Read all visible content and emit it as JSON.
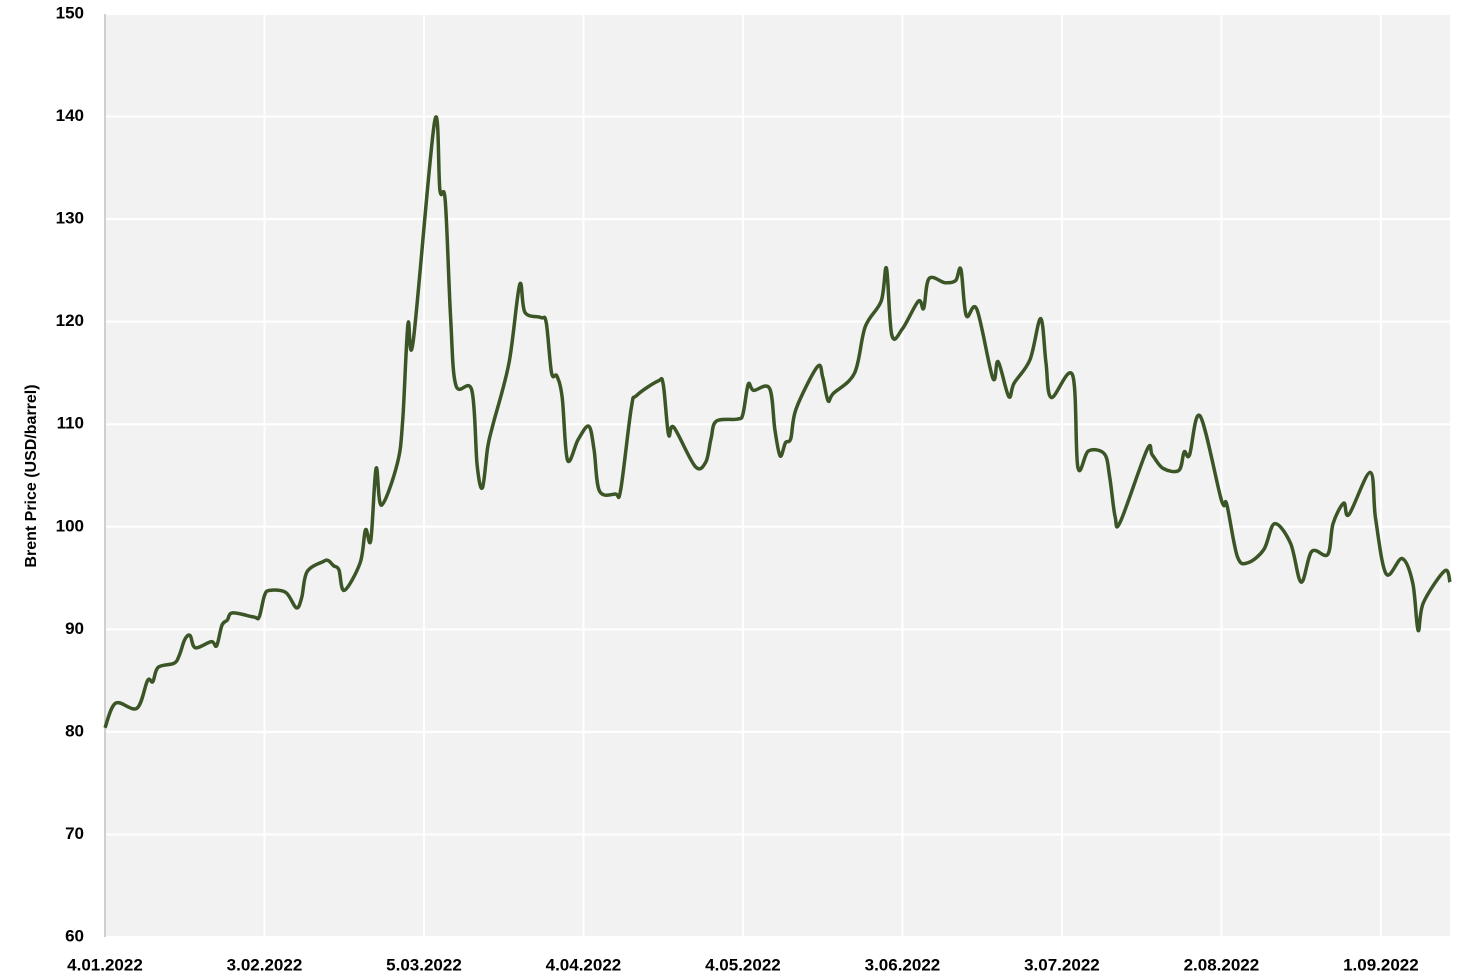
{
  "chart_data": {
    "type": "line",
    "y_label": "Brent Price (USD/barrel)",
    "x": [
      "2022-01-04",
      "2022-01-06",
      "2022-01-10",
      "2022-01-12",
      "2022-01-13",
      "2022-01-14",
      "2022-01-17",
      "2022-01-18",
      "2022-01-19",
      "2022-01-20",
      "2022-01-21",
      "2022-01-24",
      "2022-01-25",
      "2022-01-26",
      "2022-01-27",
      "2022-01-28",
      "2022-02-01",
      "2022-02-02",
      "2022-02-03",
      "2022-02-04",
      "2022-02-07",
      "2022-02-09",
      "2022-02-10",
      "2022-02-11",
      "2022-02-14",
      "2022-02-15",
      "2022-02-16",
      "2022-02-17",
      "2022-02-18",
      "2022-02-21",
      "2022-02-22",
      "2022-02-23",
      "2022-02-24",
      "2022-02-25",
      "2022-02-28",
      "2022-03-01",
      "2022-03-02",
      "2022-03-03",
      "2022-03-07",
      "2022-03-08",
      "2022-03-09",
      "2022-03-10",
      "2022-03-11",
      "2022-03-14",
      "2022-03-15",
      "2022-03-16",
      "2022-03-17",
      "2022-03-18",
      "2022-03-21",
      "2022-03-23",
      "2022-03-24",
      "2022-03-27",
      "2022-03-28",
      "2022-03-29",
      "2022-03-30",
      "2022-03-31",
      "2022-04-01",
      "2022-04-03",
      "2022-04-05",
      "2022-04-06",
      "2022-04-07",
      "2022-04-10",
      "2022-04-11",
      "2022-04-13",
      "2022-04-14",
      "2022-04-18",
      "2022-04-19",
      "2022-04-20",
      "2022-04-21",
      "2022-04-25",
      "2022-04-27",
      "2022-04-28",
      "2022-04-29",
      "2022-05-03",
      "2022-05-04",
      "2022-05-05",
      "2022-05-06",
      "2022-05-09",
      "2022-05-10",
      "2022-05-11",
      "2022-05-12",
      "2022-05-13",
      "2022-05-14",
      "2022-05-18",
      "2022-05-19",
      "2022-05-20",
      "2022-05-21",
      "2022-05-25",
      "2022-05-27",
      "2022-05-30",
      "2022-05-31",
      "2022-06-01",
      "2022-06-03",
      "2022-06-06",
      "2022-06-07",
      "2022-06-08",
      "2022-06-11",
      "2022-06-13",
      "2022-06-14",
      "2022-06-15",
      "2022-06-17",
      "2022-06-20",
      "2022-06-21",
      "2022-06-23",
      "2022-06-24",
      "2022-06-27",
      "2022-06-29",
      "2022-06-30",
      "2022-07-01",
      "2022-07-05",
      "2022-07-06",
      "2022-07-08",
      "2022-07-11",
      "2022-07-12",
      "2022-07-13",
      "2022-07-14",
      "2022-07-19",
      "2022-07-20",
      "2022-07-22",
      "2022-07-25",
      "2022-07-26",
      "2022-07-27",
      "2022-07-29",
      "2022-08-02",
      "2022-08-03",
      "2022-08-05",
      "2022-08-07",
      "2022-08-10",
      "2022-08-12",
      "2022-08-15",
      "2022-08-17",
      "2022-08-19",
      "2022-08-22",
      "2022-08-23",
      "2022-08-25",
      "2022-08-26",
      "2022-08-30",
      "2022-08-31",
      "2022-09-02",
      "2022-09-05",
      "2022-09-07",
      "2022-09-08",
      "2022-09-09",
      "2022-09-13",
      "2022-09-14"
    ],
    "series": [
      {
        "name": "Brent",
        "color": "#3b5526",
        "values": [
          80.4,
          82.8,
          82.3,
          85.0,
          84.9,
          86.3,
          86.7,
          87.5,
          89.0,
          89.4,
          88.2,
          88.8,
          88.4,
          90.4,
          90.9,
          91.6,
          91.2,
          91.2,
          93.3,
          93.8,
          93.6,
          92.1,
          93.1,
          95.6,
          96.6,
          96.7,
          96.2,
          95.8,
          93.8,
          96.5,
          99.7,
          98.7,
          105.7,
          102.1,
          106.2,
          110.4,
          119.8,
          118.2,
          139.5,
          132.8,
          131.8,
          120.5,
          113.8,
          113.3,
          106.0,
          103.8,
          107.8,
          110.0,
          116.0,
          123.6,
          120.9,
          120.4,
          119.9,
          115.0,
          114.7,
          112.6,
          106.5,
          108.5,
          109.8,
          107.5,
          103.5,
          103.2,
          103.6,
          111.6,
          112.8,
          114.2,
          113.9,
          109.0,
          109.7,
          105.9,
          106.3,
          108.6,
          110.3,
          110.5,
          111.0,
          113.9,
          113.3,
          113.5,
          109.5,
          106.9,
          108.2,
          108.6,
          111.5,
          115.6,
          114.6,
          112.3,
          113.0,
          115.0,
          119.5,
          122.0,
          125.2,
          118.7,
          119.3,
          122.0,
          121.3,
          124.2,
          123.8,
          124.0,
          125.1,
          120.6,
          121.2,
          114.5,
          116.1,
          112.7,
          114.0,
          116.3,
          120.3,
          116.0,
          112.6,
          114.8,
          105.8,
          107.4,
          107.1,
          104.8,
          101.0,
          100.5,
          107.5,
          107.0,
          105.7,
          105.5,
          107.3,
          107.0,
          110.8,
          102.6,
          102.2,
          97.1,
          96.5,
          97.8,
          100.3,
          98.4,
          94.6,
          97.6,
          97.3,
          100.3,
          102.3,
          101.2,
          105.3,
          100.8,
          95.4,
          96.9,
          94.5,
          89.9,
          92.6,
          95.7,
          94.6
        ]
      }
    ],
    "xlim": [
      "2022-01-04",
      "2022-09-14"
    ],
    "xticks": [
      {
        "value": "2022-01-04",
        "label": "4.01.2022"
      },
      {
        "value": "2022-02-03",
        "label": "3.02.2022"
      },
      {
        "value": "2022-03-05",
        "label": "5.03.2022"
      },
      {
        "value": "2022-04-04",
        "label": "4.04.2022"
      },
      {
        "value": "2022-05-04",
        "label": "4.05.2022"
      },
      {
        "value": "2022-06-03",
        "label": "3.06.2022"
      },
      {
        "value": "2022-07-03",
        "label": "3.07.2022"
      },
      {
        "value": "2022-08-02",
        "label": "2.08.2022"
      },
      {
        "value": "2022-09-01",
        "label": "1.09.2022"
      }
    ],
    "ylim": [
      60,
      150
    ],
    "yticks": [
      60,
      70,
      80,
      90,
      100,
      110,
      120,
      130,
      140,
      150
    ],
    "grid": true
  }
}
